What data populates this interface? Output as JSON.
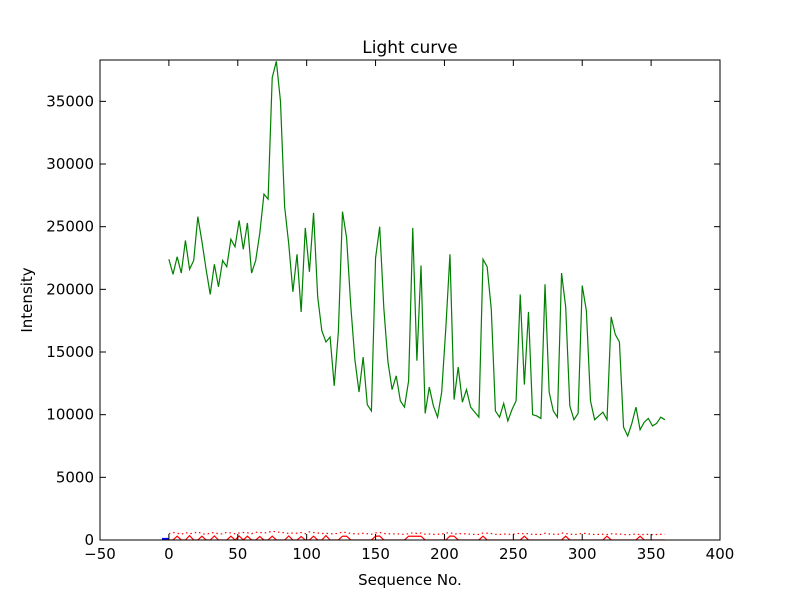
{
  "chart_data": {
    "type": "line",
    "title": "Light curve",
    "xlabel": "Sequence No.",
    "ylabel": "Intensity",
    "xlim": [
      -50,
      400
    ],
    "ylim": [
      0,
      38300
    ],
    "xticks": [
      -50,
      0,
      50,
      100,
      150,
      200,
      250,
      300,
      350,
      400
    ],
    "yticks": [
      0,
      5000,
      10000,
      15000,
      20000,
      25000,
      30000,
      35000
    ],
    "grid": false,
    "legend": "none",
    "series": [
      {
        "color": "#008000",
        "style": "solid",
        "x": [
          0,
          3,
          6,
          9,
          12,
          15,
          18,
          21,
          24,
          27,
          30,
          33,
          36,
          39,
          42,
          45,
          48,
          51,
          54,
          57,
          60,
          63,
          66,
          69,
          72,
          75,
          78,
          81,
          84,
          87,
          90,
          93,
          96,
          99,
          102,
          105,
          108,
          111,
          114,
          117,
          120,
          123,
          126,
          129,
          132,
          135,
          138,
          141,
          144,
          147,
          150,
          153,
          156,
          159,
          162,
          165,
          168,
          171,
          174,
          177,
          180,
          183,
          186,
          189,
          192,
          195,
          198,
          201,
          204,
          207,
          210,
          213,
          216,
          219,
          222,
          225,
          228,
          231,
          234,
          237,
          240,
          243,
          246,
          249,
          252,
          255,
          258,
          261,
          264,
          267,
          270,
          273,
          276,
          279,
          282,
          285,
          288,
          291,
          294,
          297,
          300,
          303,
          306,
          309,
          312,
          315,
          318,
          321,
          324,
          327,
          330,
          333,
          336,
          339,
          342,
          345,
          348,
          351,
          354,
          357,
          360
        ],
        "y": [
          22400,
          21200,
          22600,
          21300,
          23900,
          21600,
          22300,
          25800,
          23800,
          21600,
          19600,
          22000,
          20200,
          22300,
          21800,
          24000,
          23400,
          25500,
          23200,
          25300,
          21300,
          22300,
          24500,
          27600,
          27200,
          36900,
          38200,
          35000,
          26600,
          23600,
          19800,
          22800,
          18200,
          24900,
          21400,
          26100,
          19400,
          16700,
          15800,
          16200,
          12300,
          16600,
          26200,
          24100,
          18700,
          14400,
          11800,
          14600,
          10800,
          10300,
          22500,
          25000,
          18500,
          14200,
          12000,
          13100,
          11100,
          10600,
          12700,
          24900,
          14300,
          21900,
          10100,
          12200,
          10700,
          9800,
          11800,
          16900,
          22800,
          11200,
          13800,
          11000,
          12000,
          10600,
          10200,
          9800,
          22400,
          21800,
          18400,
          10300,
          9800,
          10900,
          9500,
          10400,
          11100,
          19600,
          12400,
          18200,
          10000,
          9900,
          9700,
          20400,
          11800,
          10300,
          9800,
          21300,
          18600,
          10700,
          9600,
          10100,
          20300,
          18300,
          11100,
          9600,
          9900,
          10200,
          9600,
          17800,
          16400,
          15800,
          9000,
          8300,
          9300,
          10600,
          8800,
          9400,
          9700,
          9100,
          9300,
          9800,
          9600
        ]
      },
      {
        "color": "#ff0000",
        "style": "solid",
        "x": [
          0,
          3,
          6,
          9,
          12,
          15,
          18,
          21,
          24,
          27,
          30,
          33,
          36,
          39,
          42,
          45,
          48,
          51,
          54,
          57,
          60,
          63,
          66,
          69,
          72,
          75,
          78,
          81,
          84,
          87,
          90,
          93,
          96,
          99,
          102,
          105,
          108,
          111,
          114,
          117,
          120,
          123,
          126,
          129,
          132,
          135,
          138,
          141,
          144,
          147,
          150,
          153,
          156,
          159,
          162,
          165,
          168,
          171,
          174,
          177,
          180,
          183,
          186,
          189,
          192,
          195,
          198,
          201,
          204,
          207,
          210,
          213,
          216,
          219,
          222,
          225,
          228,
          231,
          234,
          237,
          240,
          243,
          246,
          249,
          252,
          255,
          258,
          261,
          264,
          267,
          270,
          273,
          276,
          279,
          282,
          285,
          288,
          291,
          294,
          297,
          300,
          303,
          306,
          309,
          312,
          315,
          318,
          321,
          324,
          327,
          330,
          333,
          336,
          339,
          342,
          345,
          348,
          351,
          354,
          357,
          360
        ],
        "y": [
          0,
          0,
          300,
          0,
          0,
          350,
          0,
          0,
          300,
          0,
          0,
          320,
          0,
          0,
          0,
          300,
          0,
          320,
          0,
          300,
          0,
          0,
          280,
          0,
          0,
          300,
          0,
          0,
          0,
          320,
          0,
          0,
          280,
          0,
          0,
          300,
          0,
          0,
          350,
          0,
          0,
          0,
          300,
          300,
          0,
          0,
          0,
          0,
          0,
          0,
          300,
          320,
          0,
          0,
          0,
          0,
          0,
          0,
          300,
          300,
          300,
          300,
          0,
          0,
          0,
          0,
          0,
          0,
          320,
          300,
          0,
          0,
          0,
          0,
          0,
          0,
          300,
          0,
          0,
          0,
          0,
          0,
          0,
          0,
          0,
          0,
          300,
          0,
          0,
          0,
          0,
          0,
          0,
          0,
          0,
          0,
          300,
          0,
          0,
          0,
          0,
          0,
          0,
          0,
          0,
          0,
          300,
          0,
          0,
          0,
          0,
          0,
          0,
          0,
          300,
          0,
          0,
          0,
          0,
          0,
          0
        ]
      },
      {
        "color": "#ff0000",
        "style": "dotted",
        "x": [
          0,
          3,
          6,
          9,
          12,
          15,
          18,
          21,
          24,
          27,
          30,
          33,
          36,
          39,
          42,
          45,
          48,
          51,
          54,
          57,
          60,
          63,
          66,
          69,
          72,
          75,
          78,
          81,
          84,
          87,
          90,
          93,
          96,
          99,
          102,
          105,
          108,
          111,
          114,
          117,
          120,
          123,
          126,
          129,
          132,
          135,
          138,
          141,
          144,
          147,
          150,
          153,
          156,
          159,
          162,
          165,
          168,
          171,
          174,
          177,
          180,
          183,
          186,
          189,
          192,
          195,
          198,
          201,
          204,
          207,
          210,
          213,
          216,
          219,
          222,
          225,
          228,
          231,
          234,
          237,
          240,
          243,
          246,
          249,
          252,
          255,
          258,
          261,
          264,
          267,
          270,
          273,
          276,
          279,
          282,
          285,
          288,
          291,
          294,
          297,
          300,
          303,
          306,
          309,
          312,
          315,
          318,
          321,
          324,
          327,
          330,
          333,
          336,
          339,
          342,
          345,
          348,
          351,
          354,
          357,
          360
        ],
        "y": [
          500,
          600,
          550,
          450,
          600,
          500,
          550,
          650,
          500,
          450,
          550,
          600,
          500,
          480,
          620,
          550,
          500,
          560,
          600,
          580,
          500,
          620,
          600,
          550,
          620,
          700,
          650,
          600,
          580,
          520,
          560,
          540,
          600,
          500,
          650,
          600,
          560,
          520,
          540,
          500,
          480,
          550,
          620,
          600,
          520,
          500,
          480,
          540,
          500,
          460,
          560,
          600,
          520,
          500,
          480,
          500,
          460,
          450,
          500,
          580,
          520,
          560,
          460,
          480,
          450,
          460,
          480,
          540,
          600,
          460,
          520,
          480,
          500,
          460,
          450,
          440,
          560,
          540,
          520,
          460,
          440,
          480,
          450,
          460,
          480,
          540,
          480,
          520,
          440,
          450,
          440,
          540,
          480,
          460,
          440,
          560,
          520,
          460,
          440,
          450,
          540,
          520,
          460,
          440,
          450,
          460,
          440,
          500,
          480,
          480,
          440,
          420,
          440,
          480,
          420,
          440,
          450,
          430,
          440,
          460,
          450
        ]
      },
      {
        "color": "#0000ff",
        "style": "solid",
        "x": [
          -5,
          0
        ],
        "y": [
          50,
          50
        ]
      }
    ]
  }
}
